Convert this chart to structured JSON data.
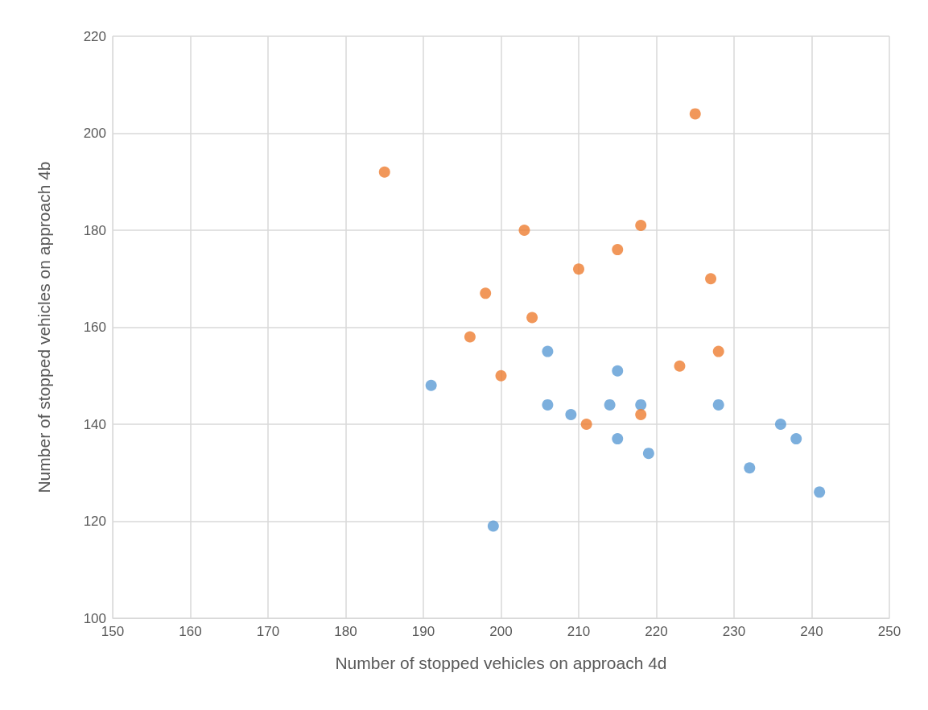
{
  "chart_data": {
    "type": "scatter",
    "xlabel": "Number of stopped vehicles on approach 4d",
    "ylabel": "Number of stopped vehicles on approach 4b",
    "xlim": [
      150,
      250
    ],
    "xticks": [
      150,
      160,
      170,
      180,
      190,
      200,
      210,
      220,
      230,
      240,
      250
    ],
    "ylim": [
      100,
      220
    ],
    "yticks": [
      100,
      120,
      140,
      160,
      180,
      200,
      220
    ],
    "grid": true,
    "marker": "circle",
    "series": [
      {
        "color": "#5b9bd5",
        "x": [
          191,
          199,
          206,
          206,
          209,
          214,
          215,
          215,
          218,
          219,
          228,
          232,
          236,
          238,
          241
        ],
        "values": [
          148,
          119,
          155,
          144,
          142,
          144,
          151,
          137,
          144,
          134,
          144,
          131,
          140,
          137,
          126
        ]
      },
      {
        "color": "#ed7d31",
        "x": [
          185,
          196,
          198,
          200,
          203,
          204,
          210,
          211,
          215,
          218,
          218,
          223,
          225,
          227,
          228
        ],
        "values": [
          192,
          158,
          167,
          150,
          180,
          162,
          172,
          140,
          176,
          181,
          142,
          152,
          204,
          170,
          155
        ]
      }
    ]
  }
}
